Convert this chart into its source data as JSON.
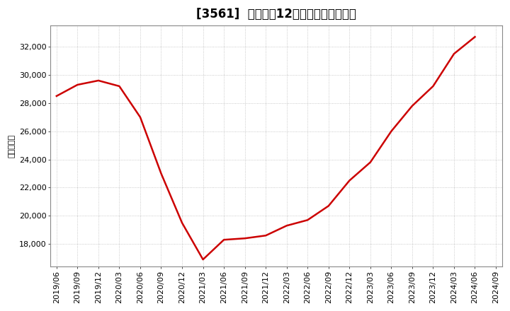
{
  "title": "[3561]  売上高の12か月移動合計の推移",
  "ylabel": "（百万円）",
  "line_color": "#cc0000",
  "background_color": "#ffffff",
  "plot_bg_color": "#ffffff",
  "grid_color": "#bbbbbb",
  "dates": [
    "2019/06",
    "2019/09",
    "2019/12",
    "2020/03",
    "2020/06",
    "2020/09",
    "2020/12",
    "2021/03",
    "2021/06",
    "2021/09",
    "2021/12",
    "2022/03",
    "2022/06",
    "2022/09",
    "2022/12",
    "2023/03",
    "2023/06",
    "2023/09",
    "2023/12",
    "2024/03",
    "2024/06"
  ],
  "values": [
    28500,
    29300,
    29600,
    29200,
    27000,
    23000,
    19500,
    16900,
    18300,
    18400,
    18600,
    19300,
    19700,
    20700,
    22500,
    23800,
    26000,
    27800,
    29200,
    31500,
    32700
  ],
  "xtick_labels": [
    "2019/06",
    "2019/09",
    "2019/12",
    "2020/03",
    "2020/06",
    "2020/09",
    "2020/12",
    "2021/03",
    "2021/06",
    "2021/09",
    "2021/12",
    "2022/03",
    "2022/06",
    "2022/09",
    "2022/12",
    "2023/03",
    "2023/06",
    "2023/09",
    "2023/12",
    "2024/03",
    "2024/06",
    "2024/09"
  ],
  "ylim": [
    16400,
    33500
  ],
  "yticks": [
    18000,
    20000,
    22000,
    24000,
    26000,
    28000,
    30000,
    32000
  ],
  "linewidth": 1.8,
  "title_fontsize": 12,
  "axis_fontsize": 8,
  "ylabel_fontsize": 8
}
